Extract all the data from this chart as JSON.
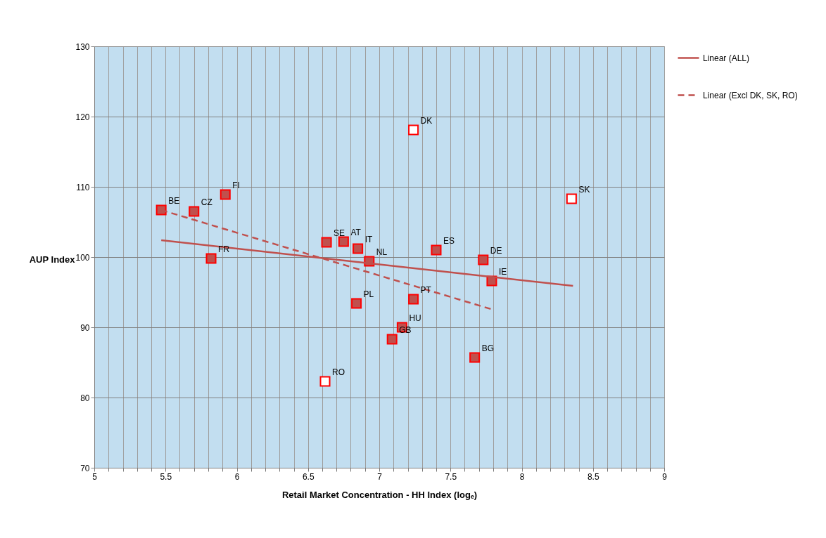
{
  "chart_data": {
    "type": "scatter",
    "xlabel": "Retail Market Concentration - HH Index (logₑ)",
    "ylabel": "AUP Index",
    "xlim": [
      5,
      9
    ],
    "ylim": [
      70,
      130
    ],
    "xticks": [
      5,
      {
        "value": 5.1,
        "label": null
      },
      {
        "value": 5.2,
        "label": null
      },
      {
        "value": 5.3,
        "label": null
      },
      {
        "value": 5.4,
        "label": null
      },
      5.5,
      {
        "value": 5.6,
        "label": null
      },
      {
        "value": 5.7,
        "label": null
      },
      {
        "value": 5.8,
        "label": null
      },
      {
        "value": 5.9,
        "label": null
      },
      6,
      {
        "value": 6.1,
        "label": null
      },
      {
        "value": 6.2,
        "label": null
      },
      {
        "value": 6.3,
        "label": null
      },
      {
        "value": 6.4,
        "label": null
      },
      6.5,
      {
        "value": 6.6,
        "label": null
      },
      {
        "value": 6.7,
        "label": null
      },
      {
        "value": 6.8,
        "label": null
      },
      {
        "value": 6.9,
        "label": null
      },
      7,
      {
        "value": 7.1,
        "label": null
      },
      {
        "value": 7.2,
        "label": null
      },
      {
        "value": 7.3,
        "label": null
      },
      {
        "value": 7.4,
        "label": null
      },
      7.5,
      {
        "value": 7.6,
        "label": null
      },
      {
        "value": 7.7,
        "label": null
      },
      {
        "value": 7.8,
        "label": null
      },
      {
        "value": 7.9,
        "label": null
      },
      8,
      {
        "value": 8.1,
        "label": null
      },
      {
        "value": 8.2,
        "label": null
      },
      {
        "value": 8.3,
        "label": null
      },
      {
        "value": 8.4,
        "label": null
      },
      8.5,
      {
        "value": 8.6,
        "label": null
      },
      {
        "value": 8.7,
        "label": null
      },
      {
        "value": 8.8,
        "label": null
      },
      {
        "value": 8.9,
        "label": null
      },
      9
    ],
    "yticks": [
      70,
      80,
      90,
      100,
      110,
      120,
      130
    ],
    "grid": true,
    "legend": "right",
    "marker": "square",
    "series": [
      {
        "color": "#c0504d",
        "x": [
          5.47,
          5.7,
          5.92,
          5.82,
          6.63,
          6.75,
          6.85,
          6.93,
          6.84,
          7.24,
          7.4,
          7.73,
          7.79,
          7.16,
          7.09,
          7.67
        ],
        "values": [
          106.7,
          106.5,
          108.9,
          99.8,
          102.1,
          102.2,
          101.2,
          99.4,
          93.4,
          94.0,
          101.0,
          99.6,
          96.6,
          90.0,
          88.3,
          85.7
        ]
      },
      {
        "color": "#ffffff",
        "x": [
          7.24,
          8.35,
          6.62
        ],
        "values": [
          118.1,
          108.3,
          82.3
        ]
      },
      {
        "type": "line",
        "name": "Linear (ALL)",
        "color": "#c0504d",
        "line_style": "solid",
        "marker": "none",
        "x": [
          5.47,
          8.36
        ],
        "values": [
          102.4,
          95.9
        ]
      },
      {
        "type": "line",
        "name": "Linear (Excl DK, SK, RO)",
        "color": "#c0504d",
        "line_style": "dashed",
        "marker": "none",
        "x": [
          5.47,
          7.8
        ],
        "values": [
          106.7,
          92.5
        ]
      }
    ],
    "annotations": [
      {
        "text": "BE",
        "x": 5.47,
        "y": 106.7
      },
      {
        "text": "CZ",
        "x": 5.7,
        "y": 106.5
      },
      {
        "text": "FI",
        "x": 5.92,
        "y": 108.9
      },
      {
        "text": "FR",
        "x": 5.82,
        "y": 99.8
      },
      {
        "text": "SE",
        "x": 6.63,
        "y": 102.1
      },
      {
        "text": "AT",
        "x": 6.75,
        "y": 102.2
      },
      {
        "text": "IT",
        "x": 6.85,
        "y": 101.2
      },
      {
        "text": "NL",
        "x": 6.93,
        "y": 99.4
      },
      {
        "text": "PL",
        "x": 6.84,
        "y": 93.4
      },
      {
        "text": "PT",
        "x": 7.24,
        "y": 94.0
      },
      {
        "text": "ES",
        "x": 7.4,
        "y": 101.0
      },
      {
        "text": "DE",
        "x": 7.73,
        "y": 99.6
      },
      {
        "text": "IE",
        "x": 7.79,
        "y": 96.6
      },
      {
        "text": "HU",
        "x": 7.16,
        "y": 90.0
      },
      {
        "text": "GB",
        "x": 7.09,
        "y": 88.3
      },
      {
        "text": "BG",
        "x": 7.67,
        "y": 85.7
      },
      {
        "text": "DK",
        "x": 7.24,
        "y": 118.1
      },
      {
        "text": "SK",
        "x": 8.35,
        "y": 108.3
      },
      {
        "text": "RO",
        "x": 6.62,
        "y": 82.3
      }
    ]
  }
}
